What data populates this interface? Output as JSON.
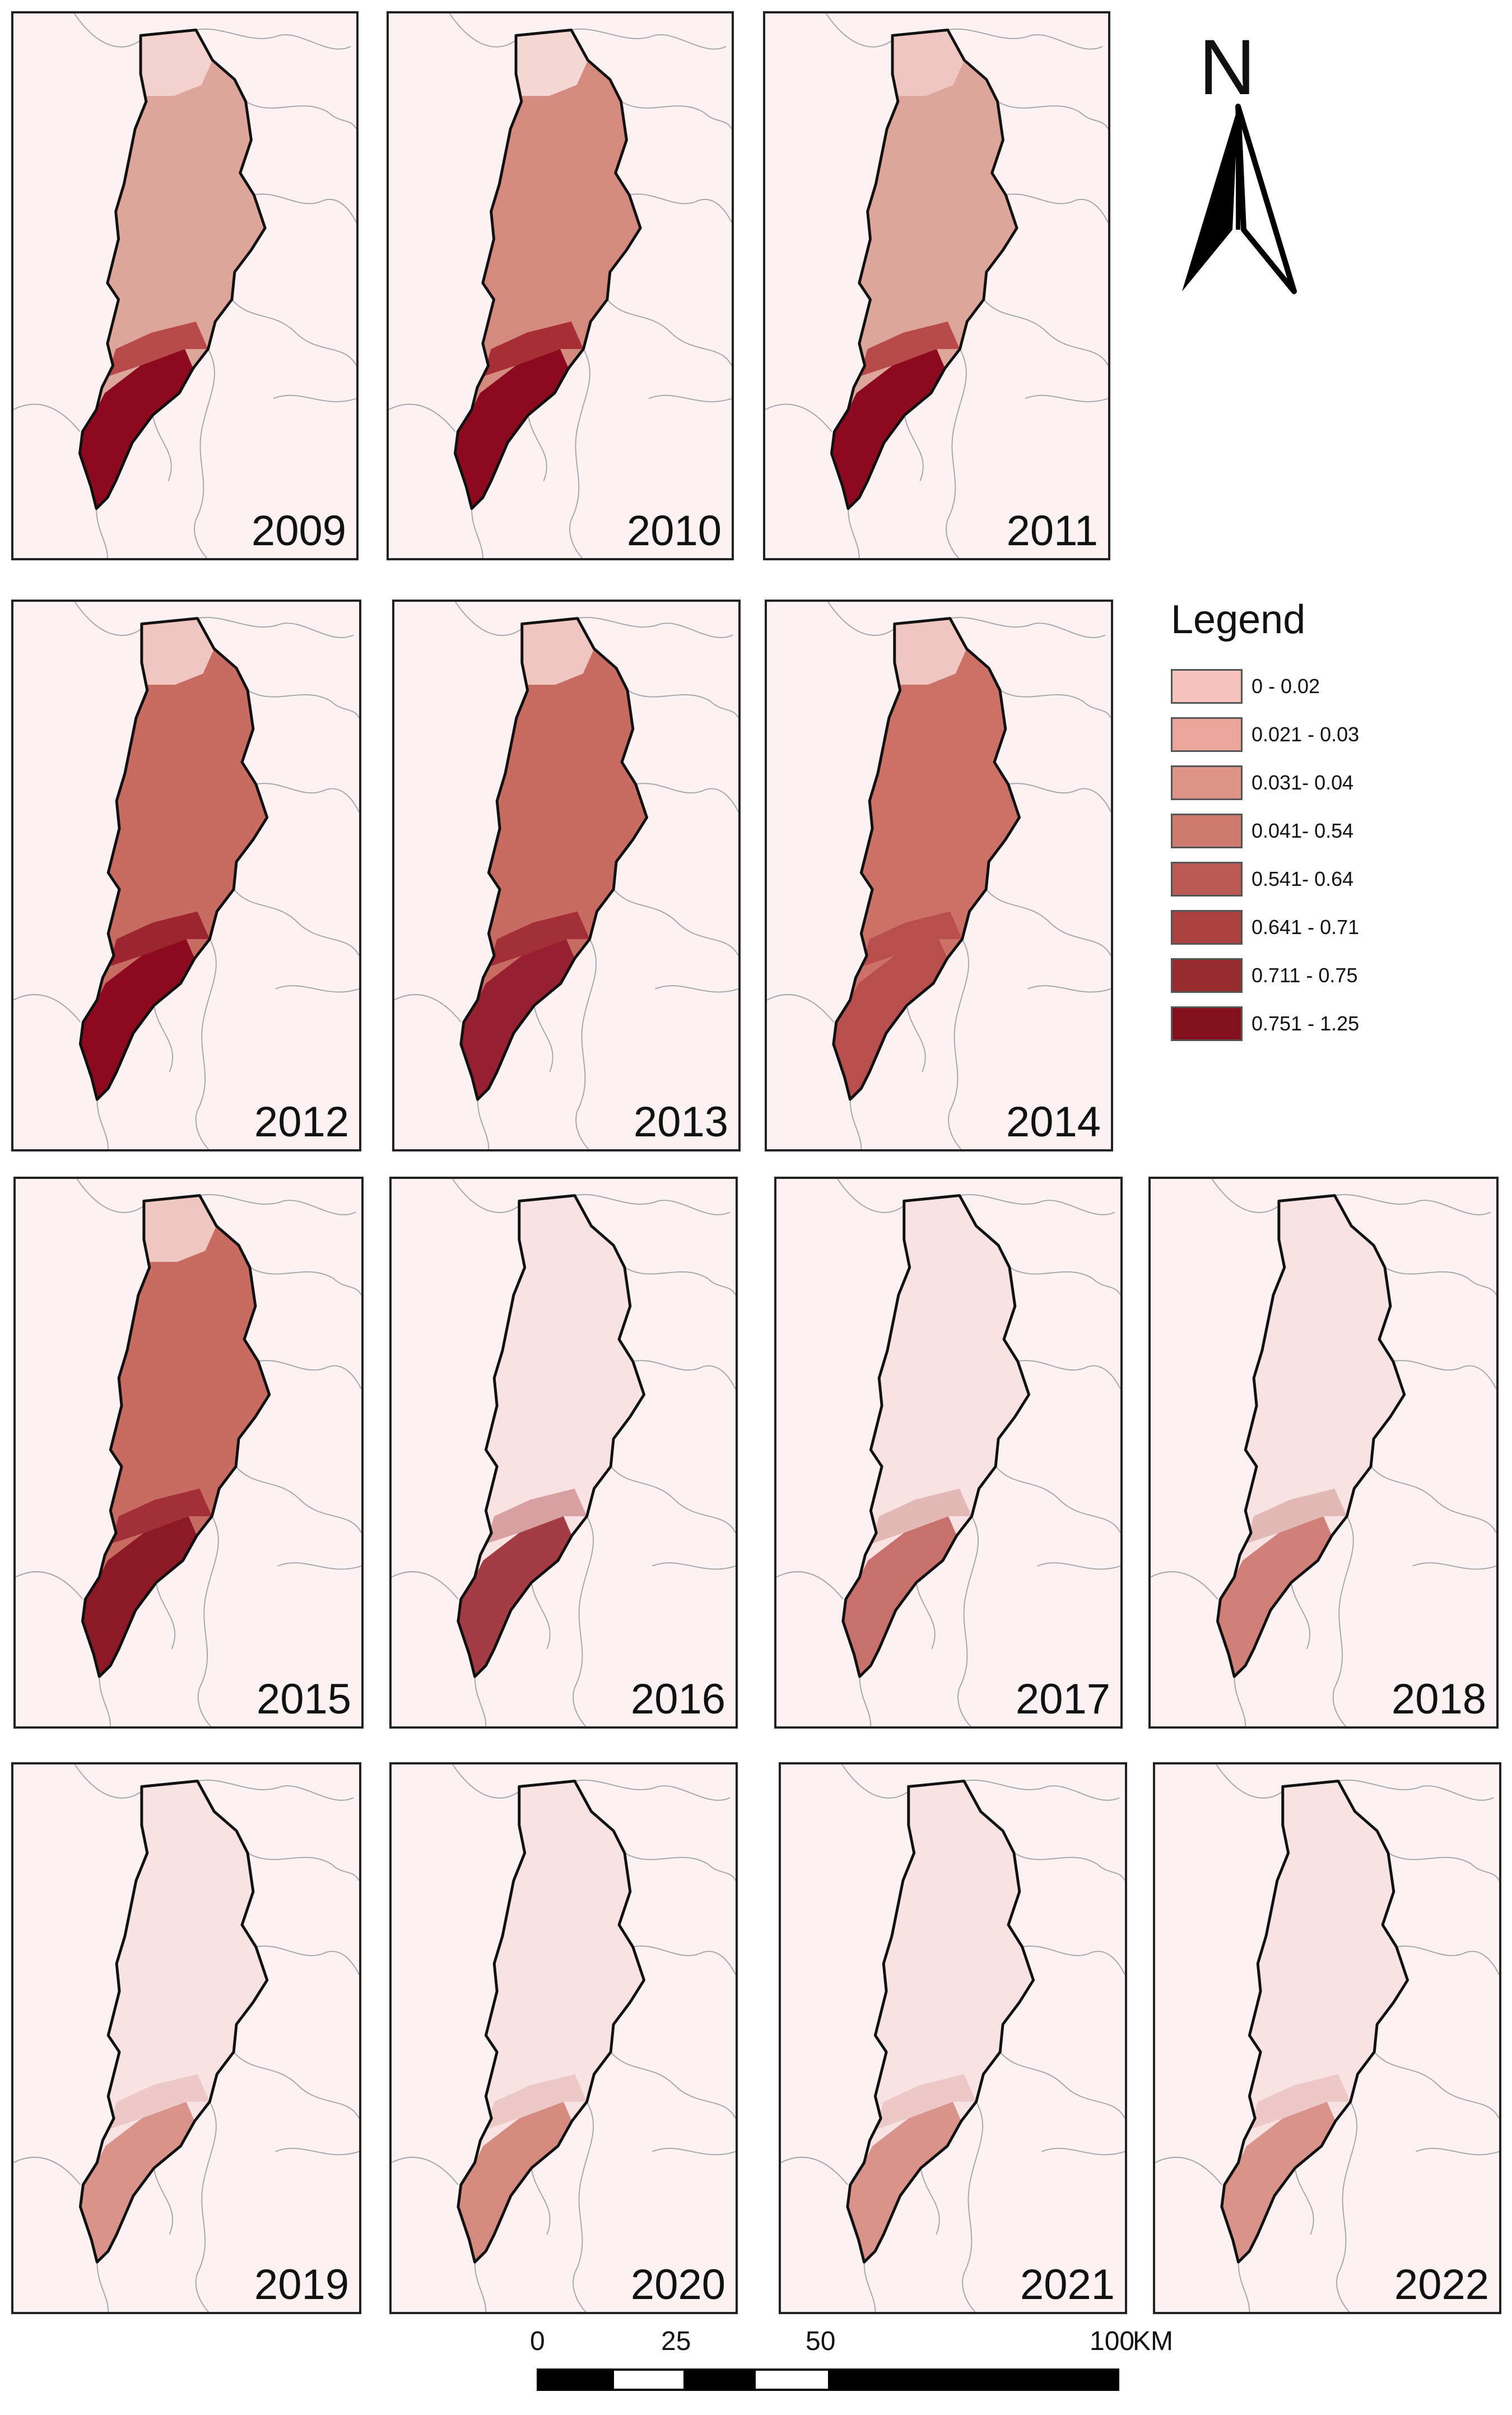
{
  "maps": [
    {
      "year": "2009",
      "base": "#dea59b",
      "south": "#8b0a1d",
      "mid": "#b84a4c",
      "north": "#f3d1cd"
    },
    {
      "year": "2010",
      "base": "#d58a80",
      "south": "#8b0a1d",
      "mid": "#a62e34",
      "north": "#f4d6d2"
    },
    {
      "year": "2011",
      "base": "#dea59b",
      "south": "#8b0a1d",
      "mid": "#b84a4c",
      "north": "#f0c6c0"
    },
    {
      "year": "2012",
      "base": "#c86b62",
      "south": "#8b0a1d",
      "mid": "#9c2530",
      "north": "#f0c6c0"
    },
    {
      "year": "2013",
      "base": "#c86b62",
      "south": "#962030",
      "mid": "#a33038",
      "north": "#f0c6c0"
    },
    {
      "year": "2014",
      "base": "#cc7167",
      "south": "#b84e4e",
      "mid": "#b84e4e",
      "north": "#f0c6c0"
    },
    {
      "year": "2015",
      "base": "#c86b62",
      "south": "#8b1a26",
      "mid": "#a33038",
      "north": "#f0c6c0"
    },
    {
      "year": "2016",
      "base": "#f9e2e4",
      "south": "#a33d43",
      "mid": "#d8a0a0",
      "north": "#f9e2e4"
    },
    {
      "year": "2017",
      "base": "#f9e2e4",
      "south": "#c8716c",
      "mid": "#e3b9b6",
      "north": "#f9e2e4"
    },
    {
      "year": "2018",
      "base": "#f9e2e4",
      "south": "#d08078",
      "mid": "#e3b9b6",
      "north": "#f9e2e4"
    },
    {
      "year": "2019",
      "base": "#f9e2e4",
      "south": "#d8948a",
      "mid": "#ecc9c6",
      "north": "#f9e2e4"
    },
    {
      "year": "2020",
      "base": "#f9e2e4",
      "south": "#d58a80",
      "mid": "#ecc9c6",
      "north": "#f9e2e4"
    },
    {
      "year": "2021",
      "base": "#f9e2e4",
      "south": "#d8948a",
      "mid": "#ecc9c6",
      "north": "#f9e2e4"
    },
    {
      "year": "2022",
      "base": "#f9e2e4",
      "south": "#d8948a",
      "mid": "#ecc9c6",
      "north": "#f9e2e4"
    }
  ],
  "north_arrow": {
    "letter": "N"
  },
  "legend": {
    "title": "Legend",
    "classes": [
      {
        "label": "0 - 0.02",
        "color": "#f7c2bb"
      },
      {
        "label": "0.021 - 0.03",
        "color": "#eba59b"
      },
      {
        "label": "0.031- 0.04",
        "color": "#dd9385"
      },
      {
        "label": "0.041- 0.54",
        "color": "#cf7a6f"
      },
      {
        "label": "0.541- 0.64",
        "color": "#bb5a55"
      },
      {
        "label": "0.641 - 0.71",
        "color": "#a9413f"
      },
      {
        "label": "0.711 - 0.75",
        "color": "#962c2e"
      },
      {
        "label": "0.751 - 1.25",
        "color": "#84101e"
      }
    ]
  },
  "scale": {
    "ticks": [
      "0",
      "25",
      "50",
      "100"
    ],
    "unit": "KM"
  }
}
